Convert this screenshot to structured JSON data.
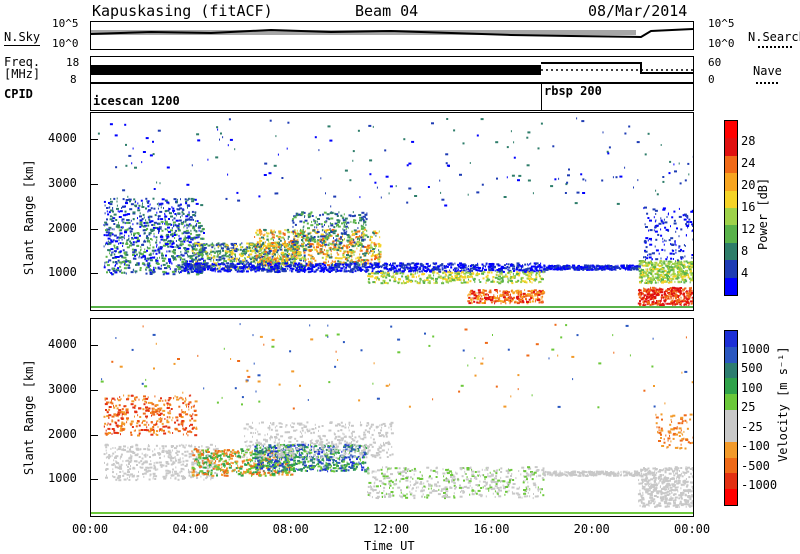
{
  "header": {
    "station": "Kapuskasing (fitACF)",
    "beam": "Beam 04",
    "date": "08/Mar/2014"
  },
  "top_panels": {
    "nsky_label": "N.Sky",
    "nsky_ticks": [
      "10^5",
      "10^0"
    ],
    "nsearch_label": "N.Search",
    "freq_label_1": "Freq.",
    "freq_label_2": "[MHz]",
    "freq_ticks": [
      "18",
      "8"
    ],
    "nave_label": "Nave",
    "nave_ticks": [
      "60",
      "0"
    ],
    "cpid_label": "CPID",
    "cpid_modes": [
      {
        "name": "icescan 1200",
        "start_hour": 0
      },
      {
        "name": "rbsp 200",
        "start_hour": 18
      }
    ]
  },
  "colors": {
    "power_scale": [
      "#0000ff",
      "#1e3cb4",
      "#2e7d6a",
      "#59b24a",
      "#9ed24a",
      "#f5d327",
      "#f7a520",
      "#f06a18",
      "#e01010",
      "#ff0000"
    ],
    "velocity_scale": [
      "#1c2fd6",
      "#2a57c0",
      "#2d7d70",
      "#2fa24a",
      "#6bc83a",
      "#c8c8c8",
      "#c8c8c8",
      "#f29a2a",
      "#ef6a18",
      "#e33012",
      "#ff0000"
    ]
  },
  "chart_data": [
    {
      "type": "heatmap",
      "title": "Kapuskasing (fitACF)",
      "xlabel": "Time UT",
      "ylabel": "Slant Range [km]",
      "x_ticks": [
        "00:00",
        "04:00",
        "08:00",
        "12:00",
        "16:00",
        "20:00",
        "00:00"
      ],
      "xlim_hours": [
        0,
        24
      ],
      "y_ticks": [
        1000,
        2000,
        3000,
        4000
      ],
      "ylim": [
        180,
        4590
      ],
      "colorbar_label": "Power [dB]",
      "colorbar_ticks": [
        4,
        8,
        12,
        16,
        20,
        24,
        28
      ],
      "colorbar_range": [
        0,
        30
      ]
    },
    {
      "type": "heatmap",
      "xlabel": "Time UT",
      "ylabel": "Slant Range [km]",
      "x_ticks": [
        "00:00",
        "04:00",
        "08:00",
        "12:00",
        "16:00",
        "20:00",
        "00:00"
      ],
      "xlim_hours": [
        0,
        24
      ],
      "y_ticks": [
        1000,
        2000,
        3000,
        4000
      ],
      "ylim": [
        180,
        4590
      ],
      "colorbar_label": "Velocity [m s⁻¹]",
      "colorbar_ticks": [
        1000,
        500,
        100,
        25,
        -25,
        -100,
        -500,
        -1000
      ],
      "x_axis_title": "Time UT"
    }
  ]
}
